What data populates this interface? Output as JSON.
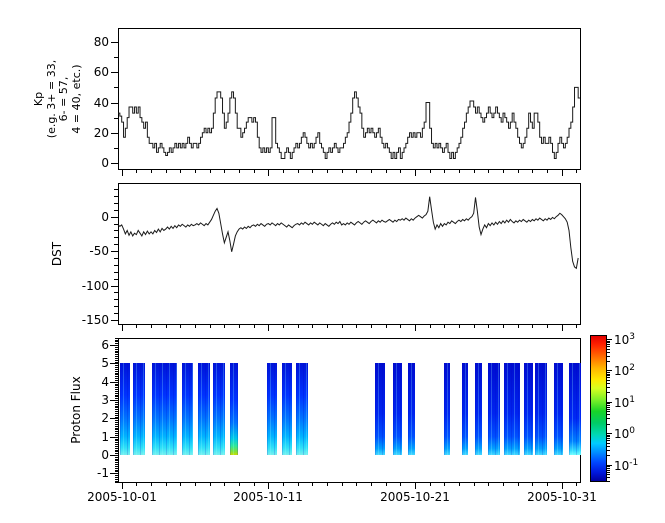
{
  "figure": {
    "x_axis": {
      "tick_labels": [
        "2005-10-01",
        "2005-10-11",
        "2005-10-21",
        "2005-10-31"
      ],
      "major_tick_days": [
        1,
        11,
        21,
        31
      ],
      "minor_tick_interval_days": 1,
      "range_days": [
        0.75,
        32.3
      ]
    },
    "panels": [
      {
        "id": "kp",
        "ylabel_lines": [
          "Kp",
          "(e.g. 3+ = 33,",
          "6- = 57,",
          "4 = 40, etc.)"
        ],
        "yticks": [
          0,
          20,
          40,
          60,
          80
        ],
        "yminor": [
          10,
          30,
          50,
          70
        ],
        "yrange": [
          -4.6,
          89.3
        ]
      },
      {
        "id": "dst",
        "ylabel_lines": [
          "DST"
        ],
        "yticks": [
          0,
          -50,
          -100,
          -150
        ],
        "yminor": [
          40,
          30,
          20,
          10,
          -10,
          -20,
          -30,
          -40,
          -60,
          -70,
          -80,
          -90,
          -110,
          -120,
          -130,
          -140
        ],
        "yrange": [
          -157,
          49
        ]
      },
      {
        "id": "proton_flux",
        "ylabel_lines": [
          "Proton Flux"
        ],
        "yticks": [
          -1,
          0,
          1,
          2,
          3,
          4,
          5,
          6
        ],
        "yminor_step": 0.1,
        "yrange": [
          -1.53,
          6.42
        ]
      }
    ],
    "colorbar": {
      "tick_exponents": [
        3,
        2,
        1,
        0,
        -1
      ],
      "tick_labels": [
        "10^3",
        "10^2",
        "10^1",
        "10^0",
        "10^-1"
      ],
      "log_range_top": 3.13,
      "log_range_bottom": -1.55,
      "colormap": "rainbow-jet",
      "gradient": [
        [
          0.0,
          "#e40000"
        ],
        [
          0.06,
          "#ff2200"
        ],
        [
          0.14,
          "#ff6a00"
        ],
        [
          0.22,
          "#ffb400"
        ],
        [
          0.3,
          "#ffe800"
        ],
        [
          0.36,
          "#d8ff20"
        ],
        [
          0.44,
          "#7cf028"
        ],
        [
          0.52,
          "#18d428"
        ],
        [
          0.6,
          "#00cc66"
        ],
        [
          0.68,
          "#00d8b4"
        ],
        [
          0.74,
          "#00ccff"
        ],
        [
          0.8,
          "#0090ff"
        ],
        [
          0.87,
          "#0048ff"
        ],
        [
          0.94,
          "#0018dc"
        ],
        [
          1.0,
          "#0000a0"
        ]
      ]
    },
    "line_color": "#1a1a1a"
  },
  "chart_data": [
    {
      "type": "line",
      "name": "Kp",
      "line_style": "step",
      "x_start_day": 0.75,
      "x_step_days": 0.125,
      "values": [
        33,
        31,
        27,
        17,
        23,
        30,
        37,
        37,
        33,
        37,
        33,
        37,
        30,
        27,
        23,
        27,
        17,
        13,
        13,
        10,
        13,
        7,
        10,
        13,
        10,
        7,
        5,
        7,
        10,
        7,
        10,
        13,
        10,
        13,
        10,
        13,
        10,
        13,
        17,
        13,
        10,
        13,
        13,
        10,
        13,
        17,
        20,
        23,
        20,
        23,
        20,
        23,
        33,
        43,
        47,
        47,
        43,
        33,
        23,
        27,
        33,
        43,
        47,
        43,
        33,
        23,
        23,
        17,
        20,
        23,
        27,
        30,
        30,
        27,
        30,
        27,
        17,
        10,
        7,
        10,
        7,
        10,
        7,
        10,
        30,
        30,
        13,
        10,
        7,
        3,
        3,
        7,
        10,
        7,
        3,
        7,
        10,
        13,
        10,
        13,
        17,
        20,
        17,
        13,
        10,
        13,
        10,
        13,
        17,
        20,
        13,
        10,
        7,
        3,
        7,
        10,
        7,
        10,
        13,
        10,
        7,
        10,
        10,
        13,
        17,
        20,
        27,
        33,
        43,
        47,
        43,
        37,
        33,
        23,
        17,
        20,
        23,
        20,
        23,
        20,
        17,
        20,
        23,
        17,
        13,
        10,
        13,
        10,
        7,
        3,
        7,
        3,
        7,
        10,
        3,
        7,
        10,
        13,
        17,
        20,
        17,
        20,
        17,
        20,
        20,
        17,
        23,
        27,
        40,
        40,
        23,
        13,
        10,
        13,
        10,
        13,
        10,
        7,
        10,
        13,
        7,
        3,
        7,
        3,
        7,
        10,
        13,
        17,
        23,
        27,
        33,
        37,
        41,
        41,
        37,
        33,
        37,
        33,
        30,
        27,
        30,
        33,
        37,
        33,
        30,
        33,
        37,
        33,
        30,
        27,
        33,
        30,
        27,
        23,
        27,
        33,
        27,
        23,
        17,
        13,
        10,
        13,
        17,
        23,
        33,
        27,
        23,
        33,
        33,
        27,
        17,
        13,
        17,
        13,
        13,
        17,
        13,
        7,
        3,
        7,
        13,
        17,
        13,
        10,
        13,
        17,
        23,
        27,
        37,
        50,
        50,
        43
      ]
    },
    {
      "type": "line",
      "name": "DST",
      "line_style": "linear",
      "x_start_day": 0.75,
      "x_step_days": 0.125,
      "values": [
        -12,
        -14,
        -12,
        -18,
        -25,
        -20,
        -27,
        -22,
        -28,
        -24,
        -26,
        -20,
        -24,
        -28,
        -22,
        -26,
        -21,
        -25,
        -22,
        -25,
        -20,
        -23,
        -18,
        -22,
        -17,
        -20,
        -18,
        -15,
        -18,
        -14,
        -17,
        -13,
        -16,
        -12,
        -14,
        -11,
        -13,
        -15,
        -12,
        -14,
        -11,
        -13,
        -12,
        -10,
        -12,
        -9,
        -11,
        -13,
        -10,
        -12,
        -8,
        -4,
        2,
        8,
        12,
        5,
        -10,
        -25,
        -38,
        -30,
        -22,
        -35,
        -51,
        -40,
        -28,
        -22,
        -18,
        -16,
        -18,
        -15,
        -17,
        -14,
        -16,
        -13,
        -12,
        -14,
        -11,
        -13,
        -10,
        -12,
        -14,
        -11,
        -10,
        -12,
        -9,
        -11,
        -13,
        -10,
        -12,
        -9,
        -11,
        -13,
        -15,
        -12,
        -14,
        -16,
        -13,
        -11,
        -10,
        -12,
        -9,
        -11,
        -8,
        -10,
        -12,
        -9,
        -11,
        -8,
        -10,
        -12,
        -9,
        -11,
        -13,
        -10,
        -12,
        -14,
        -11,
        -9,
        -11,
        -8,
        -10,
        -7,
        -12,
        -10,
        -12,
        -9,
        -11,
        -8,
        -10,
        -12,
        -9,
        -7,
        -9,
        -11,
        -8,
        -6,
        -8,
        -10,
        -7,
        -5,
        -7,
        -9,
        -6,
        -8,
        -5,
        -7,
        -8,
        -6,
        -4,
        -6,
        -8,
        -5,
        -7,
        -4,
        -5,
        -3,
        -5,
        -2,
        -4,
        -6,
        -3,
        -5,
        -2,
        0,
        2,
        0,
        -2,
        1,
        3,
        8,
        29,
        10,
        -8,
        -18,
        -12,
        -16,
        -10,
        -14,
        -10,
        -12,
        -8,
        -10,
        -6,
        -8,
        -10,
        -7,
        -5,
        -7,
        -4,
        -6,
        -3,
        -5,
        -2,
        0,
        5,
        28,
        8,
        -15,
        -26,
        -18,
        -12,
        -16,
        -10,
        -13,
        -9,
        -12,
        -8,
        -11,
        -7,
        -10,
        -6,
        -9,
        -5,
        -8,
        -4,
        -7,
        -9,
        -6,
        -8,
        -5,
        -7,
        -4,
        -6,
        -8,
        -5,
        -7,
        -4,
        -6,
        -3,
        -5,
        -2,
        -4,
        -6,
        -3,
        -5,
        -2,
        -4,
        -1,
        -3,
        0,
        2,
        5,
        3,
        0,
        -3,
        -8,
        -20,
        -45,
        -65,
        -73,
        -75,
        -60
      ]
    },
    {
      "type": "heatmap",
      "name": "Proton Flux",
      "y_extent": [
        0,
        5
      ],
      "color_scale_log10_range": [
        -1,
        3
      ],
      "bar_styles": {
        "bright": [
          [
            0,
            "#0014d8"
          ],
          [
            0.35,
            "#0032ff"
          ],
          [
            0.6,
            "#0073ff"
          ],
          [
            0.8,
            "#00b4ff"
          ],
          [
            0.92,
            "#2ee0f8"
          ],
          [
            1,
            "#77f0ef"
          ]
        ],
        "dark": [
          [
            0,
            "#000cd0"
          ],
          [
            0.55,
            "#0024f0"
          ],
          [
            0.8,
            "#0050ff"
          ],
          [
            0.93,
            "#00a0ff"
          ],
          [
            1,
            "#45d8ff"
          ]
        ],
        "green_bottom": [
          [
            0,
            "#0014d8"
          ],
          [
            0.4,
            "#0032ff"
          ],
          [
            0.65,
            "#0073ff"
          ],
          [
            0.82,
            "#00c8e8"
          ],
          [
            0.9,
            "#2de89a"
          ],
          [
            0.96,
            "#7ce23c"
          ],
          [
            1,
            "#c8e000"
          ]
        ],
        "cyan_bottom": [
          [
            0,
            "#000cd0"
          ],
          [
            0.6,
            "#0028f5"
          ],
          [
            0.85,
            "#0080ff"
          ],
          [
            0.95,
            "#30d8ff"
          ],
          [
            1,
            "#72ffff"
          ]
        ]
      },
      "bars": [
        {
          "start_day": 0.89,
          "end_day": 1.57,
          "style": "bright"
        },
        {
          "start_day": 1.77,
          "end_day": 2.59,
          "style": "bright"
        },
        {
          "start_day": 3.07,
          "end_day": 4.77,
          "style": "bright"
        },
        {
          "start_day": 5.11,
          "end_day": 5.86,
          "style": "bright"
        },
        {
          "start_day": 6.2,
          "end_day": 7.02,
          "style": "bright"
        },
        {
          "start_day": 7.22,
          "end_day": 8.04,
          "style": "bright"
        },
        {
          "start_day": 8.38,
          "end_day": 8.93,
          "style": "green_bottom"
        },
        {
          "start_day": 10.9,
          "end_day": 11.6,
          "style": "bright"
        },
        {
          "start_day": 11.9,
          "end_day": 12.6,
          "style": "bright"
        },
        {
          "start_day": 12.9,
          "end_day": 13.7,
          "style": "bright"
        },
        {
          "start_day": 18.3,
          "end_day": 19.0,
          "style": "dark"
        },
        {
          "start_day": 19.5,
          "end_day": 20.1,
          "style": "dark"
        },
        {
          "start_day": 20.5,
          "end_day": 21.0,
          "style": "dark"
        },
        {
          "start_day": 23.0,
          "end_day": 23.4,
          "style": "dark"
        },
        {
          "start_day": 24.2,
          "end_day": 24.6,
          "style": "dark"
        },
        {
          "start_day": 25.1,
          "end_day": 25.6,
          "style": "dark"
        },
        {
          "start_day": 26.0,
          "end_day": 26.8,
          "style": "dark"
        },
        {
          "start_day": 27.1,
          "end_day": 28.2,
          "style": "dark"
        },
        {
          "start_day": 28.4,
          "end_day": 29.0,
          "style": "dark"
        },
        {
          "start_day": 29.2,
          "end_day": 30.0,
          "style": "dark"
        },
        {
          "start_day": 30.5,
          "end_day": 31.1,
          "style": "dark"
        },
        {
          "start_day": 31.5,
          "end_day": 32.3,
          "style": "cyan_bottom"
        }
      ]
    }
  ]
}
